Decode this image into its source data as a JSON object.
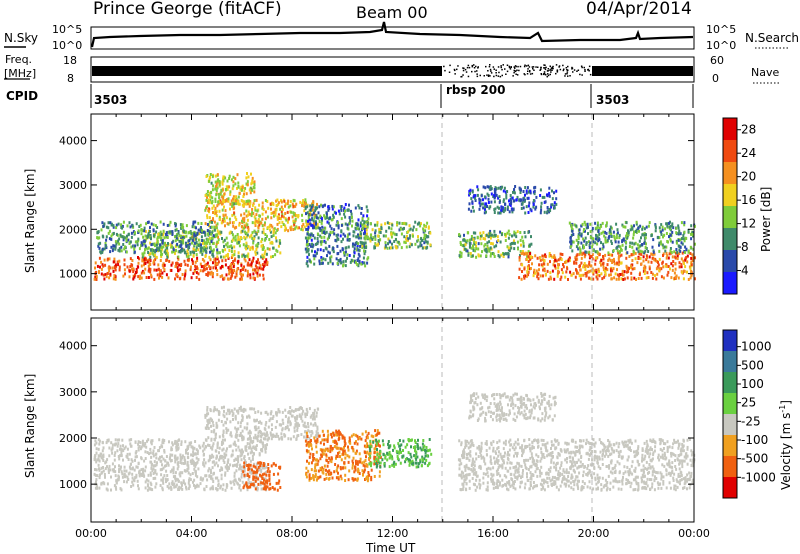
{
  "header": {
    "station": "Prince George (fitACF)",
    "beam": "Beam 00",
    "date": "04/Apr/2014"
  },
  "top_panels": {
    "nsky_label": "N.Sky",
    "nsearch_label": "N.Search",
    "noise_ticks": [
      "10^5",
      "10^0"
    ],
    "freq_label_1": "Freq.",
    "freq_label_2": "[MHz]",
    "freq_ticks": [
      "18",
      "8"
    ],
    "nave_label": "Nave",
    "nave_ticks": [
      "60",
      "0"
    ],
    "cpid_label": "CPID",
    "cpid_segments": [
      {
        "label": "3503",
        "start_h": 0,
        "end_h": 14
      },
      {
        "label": "rbsp 200",
        "start_h": 14,
        "end_h": 20
      },
      {
        "label": "3503",
        "start_h": 20,
        "end_h": 24
      }
    ]
  },
  "chart_data": [
    {
      "type": "heatmap",
      "panel": "Power",
      "ylabel": "Slant Range [km]",
      "ylim": [
        180,
        4600
      ],
      "yticks": [
        "1000",
        "2000",
        "3000",
        "4000"
      ],
      "xlim": [
        0,
        24
      ],
      "colorbar_label": "Power [dB]",
      "colorbar_ticks": [
        "4",
        "8",
        "12",
        "16",
        "20",
        "24",
        "28"
      ],
      "colorbar_range": [
        0,
        30
      ],
      "colors": [
        "#1a1aff",
        "#2a4aaa",
        "#3f8a6a",
        "#7fcc3a",
        "#f0d020",
        "#f59020",
        "#f04a10",
        "#e00000"
      ],
      "echo_bands": [
        {
          "t0": 0.1,
          "t1": 7.0,
          "r0": 900,
          "r1": 1400,
          "v": 24
        },
        {
          "t0": 2.0,
          "t1": 7.5,
          "r0": 1400,
          "r1": 2000,
          "v": 14
        },
        {
          "t0": 4.5,
          "t1": 9.0,
          "r0": 2000,
          "r1": 2700,
          "v": 18
        },
        {
          "t0": 0.2,
          "t1": 5.0,
          "r0": 1500,
          "r1": 2200,
          "v": 10
        },
        {
          "t0": 8.5,
          "t1": 11.0,
          "r0": 1200,
          "r1": 2600,
          "v": 8
        },
        {
          "t0": 10.5,
          "t1": 13.5,
          "r0": 1600,
          "r1": 2200,
          "v": 12
        },
        {
          "t0": 4.5,
          "t1": 6.5,
          "r0": 2600,
          "r1": 3300,
          "v": 16
        },
        {
          "t0": 14.6,
          "t1": 17.5,
          "r0": 1400,
          "r1": 2000,
          "v": 12
        },
        {
          "t0": 17.0,
          "t1": 24.0,
          "r0": 900,
          "r1": 1500,
          "v": 22
        },
        {
          "t0": 19.0,
          "t1": 24.0,
          "r0": 1500,
          "r1": 2200,
          "v": 10
        },
        {
          "t0": 15.0,
          "t1": 18.5,
          "r0": 2400,
          "r1": 3000,
          "v": 6
        }
      ]
    },
    {
      "type": "heatmap",
      "panel": "Velocity",
      "ylabel": "Slant Range [km]",
      "ylim": [
        180,
        4600
      ],
      "yticks": [
        "1000",
        "2000",
        "3000",
        "4000"
      ],
      "xlim": [
        0,
        24
      ],
      "xticks": [
        "00:00",
        "04:00",
        "08:00",
        "12:00",
        "16:00",
        "20:00",
        "00:00"
      ],
      "xlabel": "Time UT",
      "colorbar_label": "Velocity [m s",
      "colorbar_label_sup": "-1",
      "colorbar_label_end": "]",
      "colorbar_ticks": [
        "1000",
        "500",
        "100",
        "25",
        "-25",
        "-100",
        "-500",
        "-1000"
      ],
      "colors": [
        "#2030c0",
        "#3a7a9a",
        "#3a9a5a",
        "#6ad040",
        "#c8c8c0",
        "#f0a020",
        "#f06010",
        "#e00000"
      ],
      "echo_bands": [
        {
          "t0": 0.1,
          "t1": 7.0,
          "r0": 900,
          "r1": 2000,
          "v": 0
        },
        {
          "t0": 4.5,
          "t1": 9.0,
          "r0": 2000,
          "r1": 2700,
          "v": 0
        },
        {
          "t0": 8.5,
          "t1": 11.5,
          "r0": 1100,
          "r1": 2200,
          "v": -100
        },
        {
          "t0": 11.0,
          "t1": 13.5,
          "r0": 1400,
          "r1": 2000,
          "v": 100
        },
        {
          "t0": 6.0,
          "t1": 7.5,
          "r0": 900,
          "r1": 1500,
          "v": -300
        },
        {
          "t0": 14.6,
          "t1": 24.0,
          "r0": 900,
          "r1": 2000,
          "v": 0
        },
        {
          "t0": 15.0,
          "t1": 18.5,
          "r0": 2400,
          "r1": 3000,
          "v": 0
        }
      ]
    }
  ]
}
